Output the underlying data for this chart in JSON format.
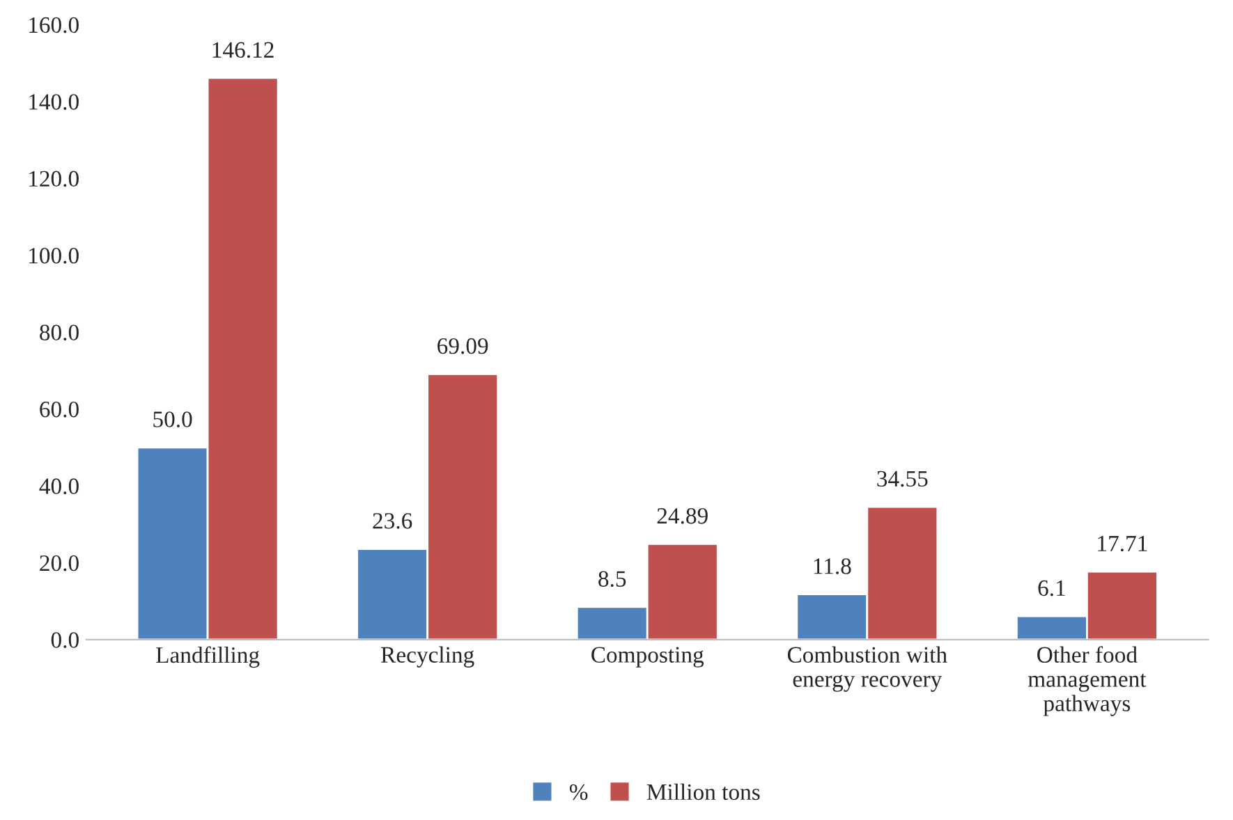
{
  "chart_data": {
    "type": "bar",
    "categories": [
      "Landfilling",
      "Recycling",
      "Composting",
      "Combustion with\nenergy recovery",
      "Other food\nmanagement\npathways"
    ],
    "series": [
      {
        "name": "%",
        "color": "#4f81bd",
        "values": [
          50.0,
          23.6,
          8.5,
          11.8,
          6.1
        ],
        "value_labels": [
          "50.0",
          "23.6",
          "8.5",
          "11.8",
          "6.1"
        ]
      },
      {
        "name": "Million tons",
        "color": "#c0504d",
        "values": [
          146.12,
          69.09,
          24.89,
          34.55,
          17.71
        ],
        "value_labels": [
          "146.12",
          "69.09",
          "24.89",
          "34.55",
          "17.71"
        ]
      }
    ],
    "ylim": [
      0,
      160
    ],
    "yticks": [
      {
        "value": 0,
        "label": "0.0"
      },
      {
        "value": 20,
        "label": "20.0"
      },
      {
        "value": 40,
        "label": "40.0"
      },
      {
        "value": 60,
        "label": "60.0"
      },
      {
        "value": 80,
        "label": "80.0"
      },
      {
        "value": 100,
        "label": "100.0"
      },
      {
        "value": 120,
        "label": "120.0"
      },
      {
        "value": 140,
        "label": "140.0"
      },
      {
        "value": 160,
        "label": "160.0"
      }
    ],
    "grid": false,
    "legend": "bottom"
  }
}
